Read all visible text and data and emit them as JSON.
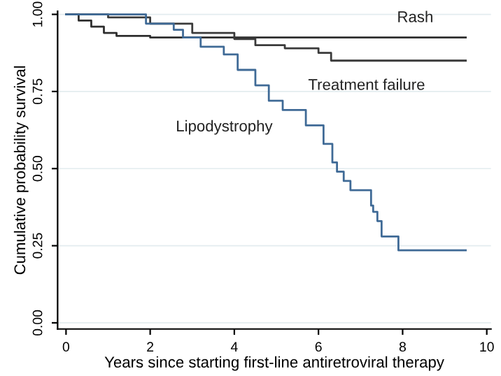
{
  "chart_data": {
    "type": "step",
    "xlabel": "Years since starting first-line antiretroviral therapy",
    "ylabel": "Cumulative probability survival",
    "xlim": [
      -0.2,
      10.1
    ],
    "ylim": [
      -0.02,
      1.01
    ],
    "xticks": [
      0,
      2,
      4,
      6,
      8,
      10
    ],
    "yticks": [
      {
        "value": 0,
        "label": "0.00"
      },
      {
        "value": 0.25,
        "label": "0.25"
      },
      {
        "value": 0.5,
        "label": "0.50"
      },
      {
        "value": 0.75,
        "label": "0.75"
      },
      {
        "value": 1,
        "label": "1.00"
      }
    ],
    "grid": "y",
    "line_style": "solid",
    "marker": "none",
    "series": [
      {
        "name": "Rash",
        "color": "#2e2e2e",
        "x": [
          0,
          0.3,
          0.6,
          0.9,
          1.2,
          2.0,
          9.5
        ],
        "values": [
          1.0,
          0.98,
          0.96,
          0.94,
          0.93,
          0.925,
          0.925
        ]
      },
      {
        "name": "Treatment failure",
        "color": "#3a3a3a",
        "x": [
          0,
          1.0,
          2.0,
          3.0,
          4.0,
          4.5,
          5.2,
          6.0,
          6.3,
          9.5
        ],
        "values": [
          1.0,
          0.99,
          0.97,
          0.94,
          0.92,
          0.9,
          0.89,
          0.875,
          0.85,
          0.85
        ]
      },
      {
        "name": "Lipodystrophy",
        "color": "#3f6a96",
        "x": [
          0,
          1.0,
          1.9,
          2.56,
          2.78,
          3.2,
          3.75,
          4.08,
          4.5,
          4.82,
          5.15,
          5.7,
          6.12,
          6.33,
          6.44,
          6.6,
          6.76,
          7.25,
          7.3,
          7.4,
          7.5,
          7.9,
          9.5
        ],
        "values": [
          1.0,
          1.0,
          0.97,
          0.95,
          0.925,
          0.895,
          0.87,
          0.82,
          0.77,
          0.72,
          0.69,
          0.64,
          0.58,
          0.52,
          0.49,
          0.46,
          0.43,
          0.38,
          0.36,
          0.33,
          0.28,
          0.235,
          0.235
        ]
      }
    ]
  }
}
